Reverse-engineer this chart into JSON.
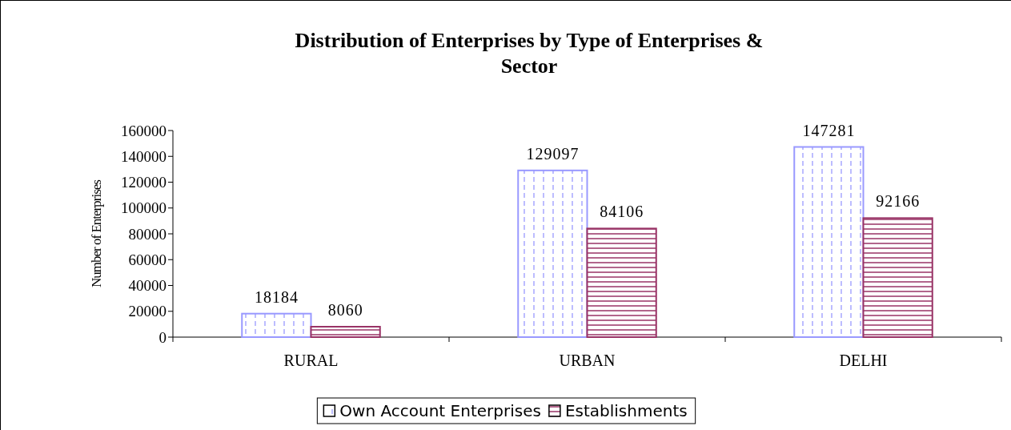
{
  "chart_data": {
    "type": "bar",
    "title": "Distribution of Enterprises by Type of Enterprises & Sector",
    "ylabel": "Number of Enterprises",
    "categories": [
      "RURAL",
      "URBAN",
      "DELHI"
    ],
    "series": [
      {
        "name": "Own Account Enterprises",
        "color": "#9999ff",
        "values": [
          18184,
          129097,
          147281
        ]
      },
      {
        "name": "Establishments",
        "color": "#993366",
        "values": [
          8060,
          84106,
          92166
        ]
      }
    ],
    "ylim": [
      0,
      160000
    ],
    "yticks": [
      0,
      20000,
      40000,
      60000,
      80000,
      100000,
      120000,
      140000,
      160000
    ],
    "grid": false,
    "legend": "bottom",
    "data_labels": true
  }
}
